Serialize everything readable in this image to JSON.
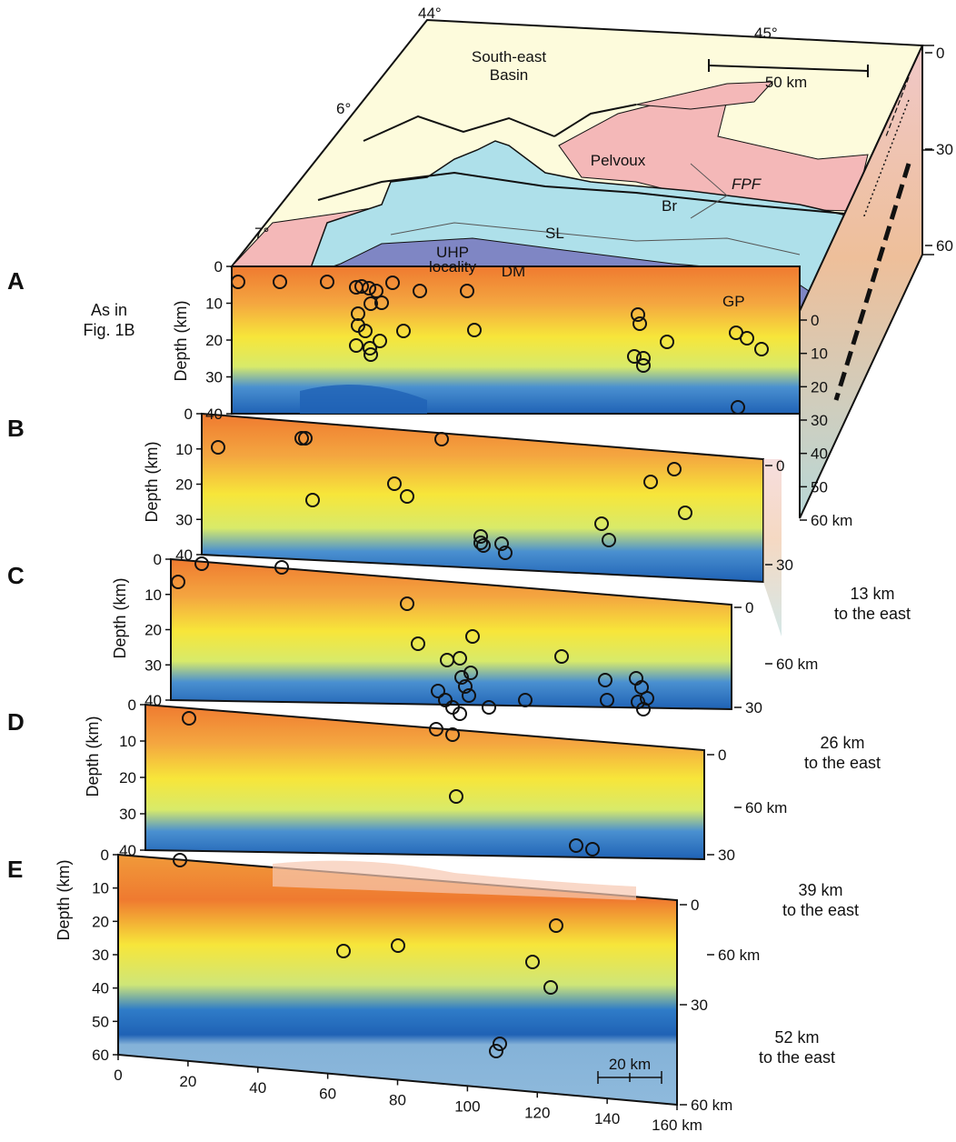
{
  "panel_letters": [
    "A",
    "B",
    "C",
    "D",
    "E"
  ],
  "panel_a_note": [
    "As in",
    "Fig. 1B"
  ],
  "offset_labels": {
    "b": [
      "13 km",
      "to the east"
    ],
    "c": [
      "26 km",
      "to the east"
    ],
    "d": [
      "39 km",
      "to the east"
    ],
    "e": [
      "52 km",
      "to the east"
    ]
  },
  "map": {
    "lat_labels": [
      "44°",
      "45°"
    ],
    "lon_labels": [
      "6°",
      "7°"
    ],
    "basin_label": [
      "South-east",
      "Basin"
    ],
    "scale_label": "50 km",
    "units": [
      "Pelvoux",
      "FPF",
      "Br",
      "SL",
      "UHP",
      "locality",
      "DM",
      "GP"
    ]
  },
  "depth_axis_title": "Depth (km)",
  "depth_ticks_40": [
    "0",
    "10",
    "20",
    "30",
    "40"
  ],
  "depth_ticks_60": [
    "0",
    "10",
    "20",
    "30",
    "40",
    "50",
    "60"
  ],
  "distance_ticks": [
    "0",
    "20",
    "40",
    "60",
    "80",
    "100",
    "120",
    "140",
    "160 km"
  ],
  "side_depth_ticks_top": [
    "0",
    "30",
    "60"
  ],
  "side_depth_ticks_block": [
    "0",
    "10",
    "20",
    "30",
    "40",
    "50",
    "60 km"
  ],
  "side_depth_ticks_small": [
    "0",
    "30",
    "60 km"
  ],
  "scalebar_label": "20 km",
  "colors": {
    "map_basin": "#fdfbdc",
    "map_pink": "#f4b8b8",
    "map_blue": "#aee0ea",
    "map_massif": "#7f86c4",
    "tomo_orange": "#ef8a3a",
    "tomo_yellow": "#f4ee3c",
    "tomo_blue": "#1f6fc0",
    "tomo_deep": "#7fb0d6"
  }
}
